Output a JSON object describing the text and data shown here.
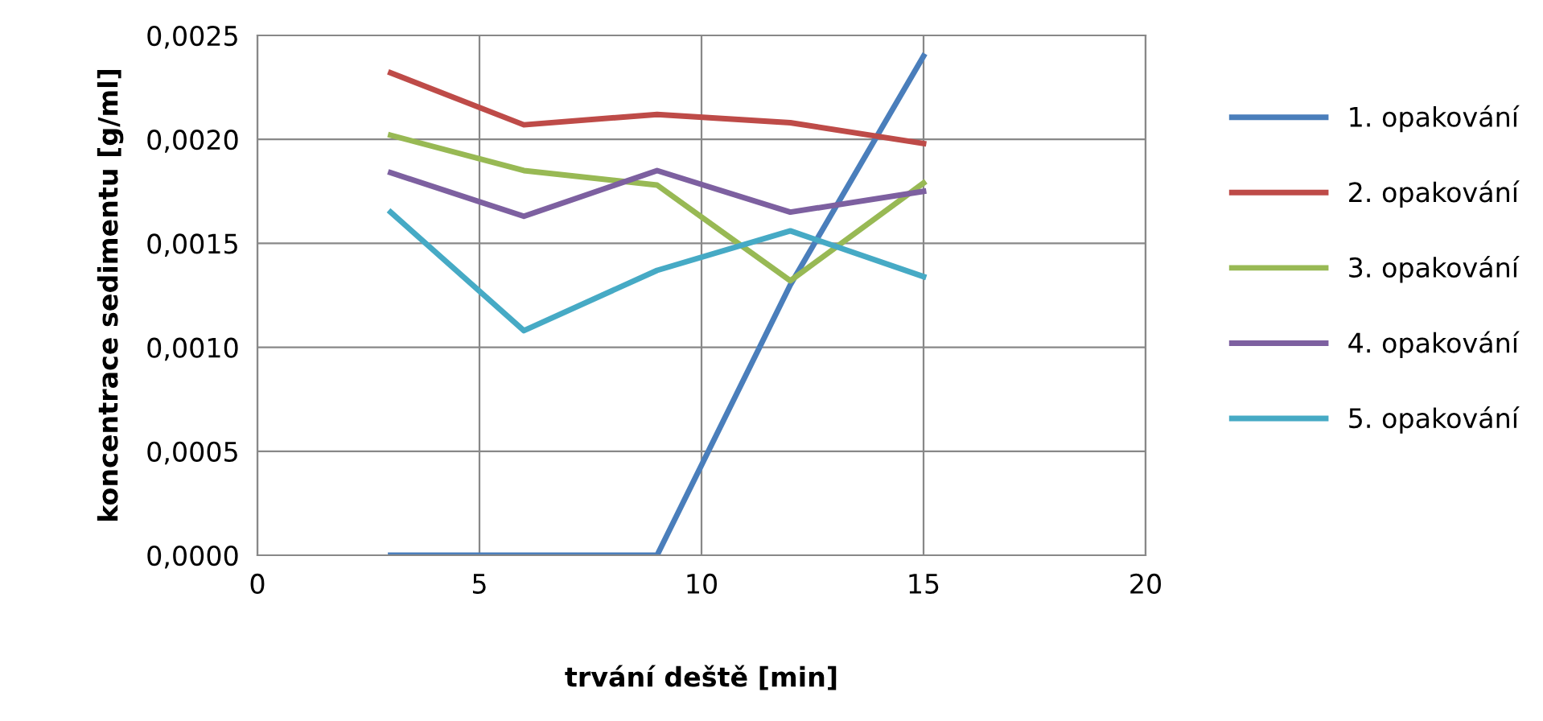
{
  "chart_data": {
    "type": "line",
    "xlabel": "trvání deště [min]",
    "ylabel": "koncentrace sedimentu [g/ml]",
    "xlim": [
      0,
      20
    ],
    "xticks": [
      0,
      5,
      10,
      15,
      20
    ],
    "ylim": [
      0,
      0.0025
    ],
    "yticks": [
      {
        "value": 0,
        "label": "0,0000"
      },
      {
        "value": 0.0005,
        "label": "0,0005"
      },
      {
        "value": 0.001,
        "label": "0,0010"
      },
      {
        "value": 0.0015,
        "label": "0,0015"
      },
      {
        "value": 0.002,
        "label": "0,0020"
      },
      {
        "value": 0.0025,
        "label": "0,0025"
      }
    ],
    "grid": true,
    "legend": "right",
    "marker": "none",
    "line_style": "solid",
    "x": [
      3,
      6,
      9,
      12,
      15
    ],
    "series": [
      {
        "name": "1. opakování",
        "color": "#4a7ebb",
        "values": [
          0,
          0,
          0,
          0.0013,
          0.0024
        ]
      },
      {
        "name": "2. opakování",
        "color": "#be4b48",
        "values": [
          0.00232,
          0.00207,
          0.00212,
          0.00208,
          0.00198
        ]
      },
      {
        "name": "3. opakování",
        "color": "#98b954",
        "values": [
          0.00202,
          0.00185,
          0.00178,
          0.00132,
          0.00179
        ]
      },
      {
        "name": "4. opakování",
        "color": "#7d60a0",
        "values": [
          0.00184,
          0.00163,
          0.00185,
          0.00165,
          0.00175
        ]
      },
      {
        "name": "5. opakování",
        "color": "#46aac5",
        "values": [
          0.00165,
          0.00108,
          0.00137,
          0.00156,
          0.00134
        ]
      }
    ]
  }
}
